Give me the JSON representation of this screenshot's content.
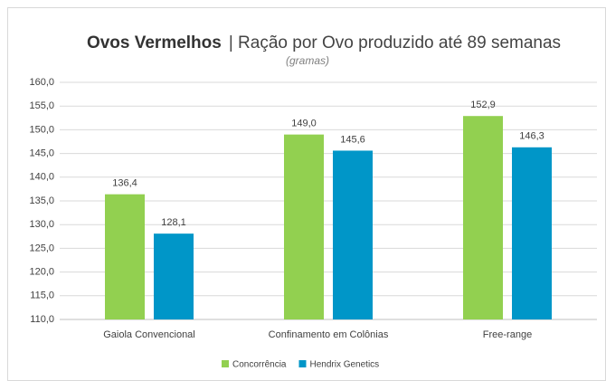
{
  "chart_data": {
    "type": "bar",
    "title": "Ovos Vermelhos",
    "title_detail": "| Ração por Ovo produzido até 89 semanas",
    "subtitle": "(gramas)",
    "categories": [
      "Gaiola Convencional",
      "Confinamento em Colônias",
      "Free-range"
    ],
    "series": [
      {
        "name": "Concorrência",
        "color": "#92d050",
        "values": [
          136.4,
          149.0,
          152.9
        ],
        "value_labels": [
          "136,4",
          "149,0",
          "152,9"
        ]
      },
      {
        "name": "Hendrix Genetics",
        "color": "#0096c8",
        "values": [
          128.1,
          145.6,
          146.3
        ],
        "value_labels": [
          "128,1",
          "145,6",
          "146,3"
        ]
      }
    ],
    "ylim": [
      110,
      160
    ],
    "yticks": [
      {
        "value": 110,
        "label": "110,0"
      },
      {
        "value": 115,
        "label": "115,0"
      },
      {
        "value": 120,
        "label": "120,0"
      },
      {
        "value": 125,
        "label": "125,0"
      },
      {
        "value": 130,
        "label": "130,0"
      },
      {
        "value": 135,
        "label": "135,0"
      },
      {
        "value": 140,
        "label": "140,0"
      },
      {
        "value": 145,
        "label": "145,0"
      },
      {
        "value": 150,
        "label": "150,0"
      },
      {
        "value": 155,
        "label": "155,0"
      },
      {
        "value": 160,
        "label": "160,0"
      }
    ],
    "grid": true,
    "legend": "bottom"
  }
}
